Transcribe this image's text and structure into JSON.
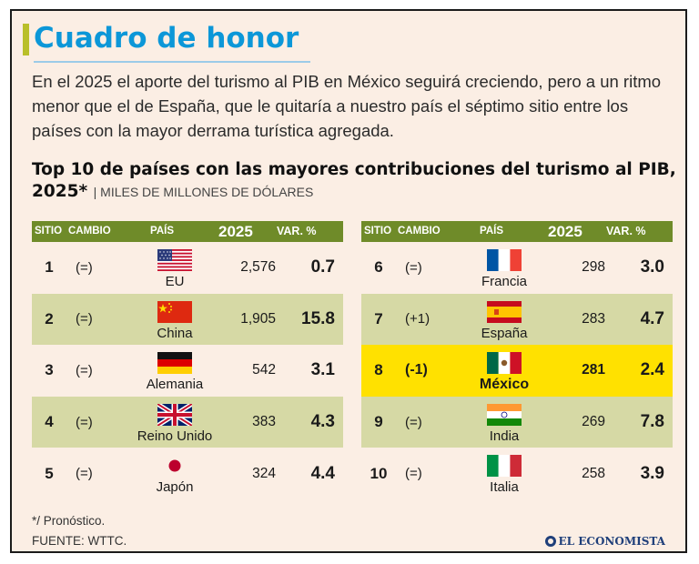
{
  "title": "Cuadro de honor",
  "intro": "En el 2025 el aporte del turismo al PIB en México seguirá creciendo, pero a un ritmo menor que el de España, que le quitaría a nuestro país el séptimo sitio entre los países con la mayor derrama turística agregada.",
  "chart_title": "Top 10 de países con las mayores contribuciones del turismo al PIB, 2025*",
  "units": "| MILES DE MILLONES DE DÓLARES",
  "headers": {
    "sitio": "SITIO",
    "cambio": "CAMBIO",
    "pais": "PAÍS",
    "year": "2025",
    "var": "VAR. %"
  },
  "colors": {
    "title": "#0c97d8",
    "header_bg": "#6f8b29",
    "row_shade": "#d6d9a5",
    "highlight": "#ffe100",
    "background": "#fbeee4"
  },
  "chart_data": {
    "type": "table",
    "columns": [
      "SITIO",
      "CAMBIO",
      "PAÍS",
      "2025",
      "VAR. %"
    ],
    "rows": [
      {
        "sitio": "1",
        "cambio": "(=)",
        "pais": "EU",
        "valor": "2,576",
        "var": "0.7",
        "flag": "usa-flag"
      },
      {
        "sitio": "2",
        "cambio": "(=)",
        "pais": "China",
        "valor": "1,905",
        "var": "15.8",
        "flag": "china-flag"
      },
      {
        "sitio": "3",
        "cambio": "(=)",
        "pais": "Alemania",
        "valor": "542",
        "var": "3.1",
        "flag": "germany-flag"
      },
      {
        "sitio": "4",
        "cambio": "(=)",
        "pais": "Reino Unido",
        "valor": "383",
        "var": "4.3",
        "flag": "uk-flag"
      },
      {
        "sitio": "5",
        "cambio": "(=)",
        "pais": "Japón",
        "valor": "324",
        "var": "4.4",
        "flag": "japan-flag"
      },
      {
        "sitio": "6",
        "cambio": "(=)",
        "pais": "Francia",
        "valor": "298",
        "var": "3.0",
        "flag": "france-flag"
      },
      {
        "sitio": "7",
        "cambio": "(+1)",
        "pais": "España",
        "valor": "283",
        "var": "4.7",
        "flag": "spain-flag"
      },
      {
        "sitio": "8",
        "cambio": "(-1)",
        "pais": "México",
        "valor": "281",
        "var": "2.4",
        "flag": "mexico-flag",
        "highlight": true
      },
      {
        "sitio": "9",
        "cambio": "(=)",
        "pais": "India",
        "valor": "269",
        "var": "7.8",
        "flag": "india-flag"
      },
      {
        "sitio": "10",
        "cambio": "(=)",
        "pais": "Italia",
        "valor": "258",
        "var": "3.9",
        "flag": "italy-flag"
      }
    ]
  },
  "footnote": "*/ Pronóstico.",
  "source": "FUENTE: WTTC.",
  "brand": "EL ECONOMISTA"
}
